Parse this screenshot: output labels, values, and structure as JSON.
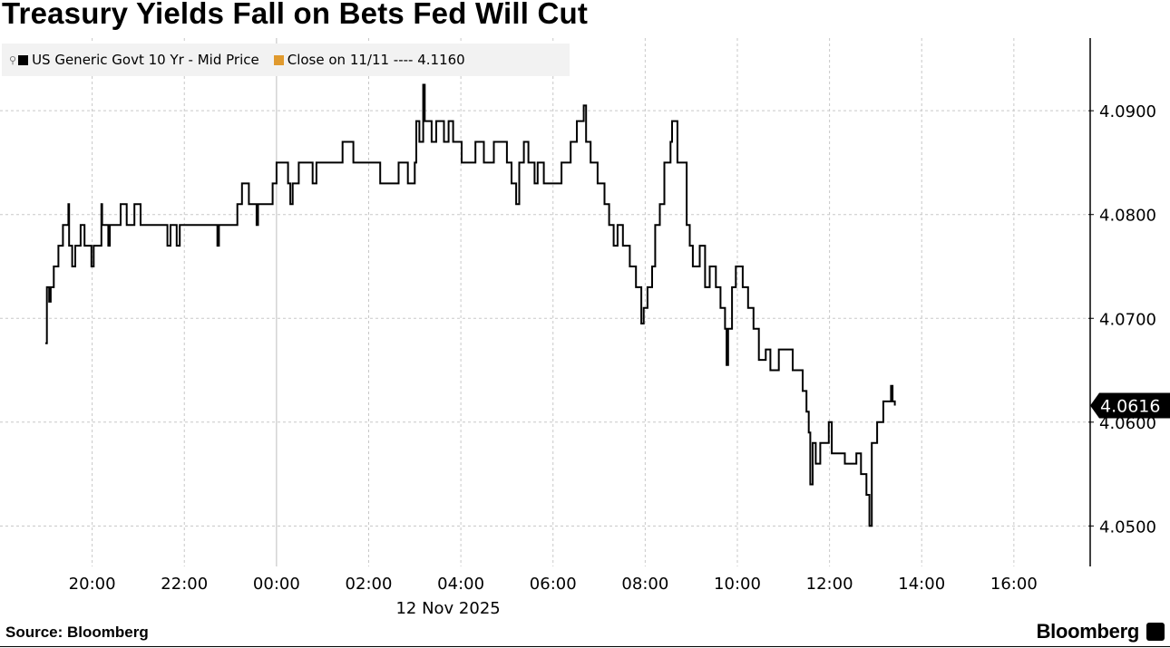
{
  "title": "Treasury Yields Fall on Bets Fed Will Cut",
  "legend": [
    {
      "label": "US Generic Govt 10 Yr - Mid Price",
      "color": "#000000"
    },
    {
      "label": "Close on 11/11 ---- 4.1160",
      "color": "#e09a2e"
    }
  ],
  "source": "Source: Bloomberg",
  "brand": "Bloomberg",
  "chart_data": {
    "type": "line",
    "step": true,
    "title": "Treasury Yields Fall on Bets Fed Will Cut",
    "series": [
      {
        "name": "US Generic Govt 10 Yr - Mid Price",
        "color": "#000000",
        "points": [
          [
            "2025-11-11T18:59",
            4.0676
          ],
          [
            "2025-11-11T19:01",
            4.073
          ],
          [
            "2025-11-11T19:04",
            4.0716
          ],
          [
            "2025-11-11T19:06",
            4.073
          ],
          [
            "2025-11-11T19:10",
            4.075
          ],
          [
            "2025-11-11T19:16",
            4.077
          ],
          [
            "2025-11-11T19:22",
            4.079
          ],
          [
            "2025-11-11T19:29",
            4.081
          ],
          [
            "2025-11-11T19:30",
            4.077
          ],
          [
            "2025-11-11T19:34",
            4.075
          ],
          [
            "2025-11-11T19:38",
            4.077
          ],
          [
            "2025-11-11T19:45",
            4.079
          ],
          [
            "2025-11-11T19:50",
            4.077
          ],
          [
            "2025-11-11T19:59",
            4.075
          ],
          [
            "2025-11-11T20:02",
            4.077
          ],
          [
            "2025-11-11T20:12",
            4.081
          ],
          [
            "2025-11-11T20:13",
            4.079
          ],
          [
            "2025-11-11T20:21",
            4.077
          ],
          [
            "2025-11-11T20:23",
            4.079
          ],
          [
            "2025-11-11T20:37",
            4.081
          ],
          [
            "2025-11-11T20:45",
            4.079
          ],
          [
            "2025-11-11T20:55",
            4.081
          ],
          [
            "2025-11-11T21:03",
            4.079
          ],
          [
            "2025-11-11T21:38",
            4.077
          ],
          [
            "2025-11-11T21:42",
            4.079
          ],
          [
            "2025-11-11T21:50",
            4.077
          ],
          [
            "2025-11-11T21:54",
            4.079
          ],
          [
            "2025-11-11T22:43",
            4.077
          ],
          [
            "2025-11-11T22:45",
            4.079
          ],
          [
            "2025-11-11T23:09",
            4.081
          ],
          [
            "2025-11-11T23:15",
            4.083
          ],
          [
            "2025-11-11T23:24",
            4.081
          ],
          [
            "2025-11-11T23:34",
            4.079
          ],
          [
            "2025-11-11T23:36",
            4.081
          ],
          [
            "2025-11-11T23:55",
            4.083
          ],
          [
            "2025-11-12T00:00",
            4.085
          ],
          [
            "2025-11-12T00:15",
            4.083
          ],
          [
            "2025-11-12T00:18",
            4.081
          ],
          [
            "2025-11-12T00:21",
            4.083
          ],
          [
            "2025-11-12T00:29",
            4.085
          ],
          [
            "2025-11-12T00:47",
            4.083
          ],
          [
            "2025-11-12T00:52",
            4.085
          ],
          [
            "2025-11-12T01:26",
            4.087
          ],
          [
            "2025-11-12T01:40",
            4.085
          ],
          [
            "2025-11-12T02:15",
            4.083
          ],
          [
            "2025-11-12T02:39",
            4.085
          ],
          [
            "2025-11-12T02:51",
            4.083
          ],
          [
            "2025-11-12T03:00",
            4.085
          ],
          [
            "2025-11-12T03:02",
            4.089
          ],
          [
            "2025-11-12T03:06",
            4.087
          ],
          [
            "2025-11-12T03:11",
            4.0925
          ],
          [
            "2025-11-12T03:13",
            4.089
          ],
          [
            "2025-11-12T03:22",
            4.087
          ],
          [
            "2025-11-12T03:28",
            4.089
          ],
          [
            "2025-11-12T03:38",
            4.087
          ],
          [
            "2025-11-12T03:44",
            4.089
          ],
          [
            "2025-11-12T03:50",
            4.087
          ],
          [
            "2025-11-12T04:01",
            4.085
          ],
          [
            "2025-11-12T04:19",
            4.087
          ],
          [
            "2025-11-12T04:30",
            4.085
          ],
          [
            "2025-11-12T04:43",
            4.087
          ],
          [
            "2025-11-12T05:00",
            4.085
          ],
          [
            "2025-11-12T05:06",
            4.083
          ],
          [
            "2025-11-12T05:12",
            4.081
          ],
          [
            "2025-11-12T05:16",
            4.085
          ],
          [
            "2025-11-12T05:22",
            4.087
          ],
          [
            "2025-11-12T05:28",
            4.085
          ],
          [
            "2025-11-12T05:36",
            4.083
          ],
          [
            "2025-11-12T05:40",
            4.085
          ],
          [
            "2025-11-12T05:48",
            4.083
          ],
          [
            "2025-11-12T06:11",
            4.085
          ],
          [
            "2025-11-12T06:23",
            4.087
          ],
          [
            "2025-11-12T06:31",
            4.089
          ],
          [
            "2025-11-12T06:40",
            4.0905
          ],
          [
            "2025-11-12T06:43",
            4.087
          ],
          [
            "2025-11-12T06:49",
            4.085
          ],
          [
            "2025-11-12T06:58",
            4.083
          ],
          [
            "2025-11-12T07:07",
            4.081
          ],
          [
            "2025-11-12T07:13",
            4.079
          ],
          [
            "2025-11-12T07:19",
            4.077
          ],
          [
            "2025-11-12T07:24",
            4.079
          ],
          [
            "2025-11-12T07:31",
            4.077
          ],
          [
            "2025-11-12T07:40",
            4.075
          ],
          [
            "2025-11-12T07:48",
            4.073
          ],
          [
            "2025-11-12T07:55",
            4.0695
          ],
          [
            "2025-11-12T07:58",
            4.071
          ],
          [
            "2025-11-12T08:03",
            4.073
          ],
          [
            "2025-11-12T08:09",
            4.075
          ],
          [
            "2025-11-12T08:13",
            4.079
          ],
          [
            "2025-11-12T08:19",
            4.081
          ],
          [
            "2025-11-12T08:25",
            4.085
          ],
          [
            "2025-11-12T08:33",
            4.087
          ],
          [
            "2025-11-12T08:35",
            4.089
          ],
          [
            "2025-11-12T08:42",
            4.085
          ],
          [
            "2025-11-12T08:54",
            4.079
          ],
          [
            "2025-11-12T08:58",
            4.077
          ],
          [
            "2025-11-12T09:02",
            4.075
          ],
          [
            "2025-11-12T09:11",
            4.077
          ],
          [
            "2025-11-12T09:18",
            4.073
          ],
          [
            "2025-11-12T09:24",
            4.075
          ],
          [
            "2025-11-12T09:32",
            4.073
          ],
          [
            "2025-11-12T09:38",
            4.071
          ],
          [
            "2025-11-12T09:44",
            4.069
          ],
          [
            "2025-11-12T09:46",
            4.0655
          ],
          [
            "2025-11-12T09:48",
            4.069
          ],
          [
            "2025-11-12T09:53",
            4.073
          ],
          [
            "2025-11-12T09:58",
            4.075
          ],
          [
            "2025-11-12T10:07",
            4.073
          ],
          [
            "2025-11-12T10:14",
            4.071
          ],
          [
            "2025-11-12T10:21",
            4.069
          ],
          [
            "2025-11-12T10:28",
            4.066
          ],
          [
            "2025-11-12T10:37",
            4.067
          ],
          [
            "2025-11-12T10:43",
            4.065
          ],
          [
            "2025-11-12T10:54",
            4.067
          ],
          [
            "2025-11-12T11:12",
            4.065
          ],
          [
            "2025-11-12T11:25",
            4.063
          ],
          [
            "2025-11-12T11:30",
            4.061
          ],
          [
            "2025-11-12T11:33",
            4.059
          ],
          [
            "2025-11-12T11:35",
            4.054
          ],
          [
            "2025-11-12T11:38",
            4.058
          ],
          [
            "2025-11-12T11:42",
            4.056
          ],
          [
            "2025-11-12T11:48",
            4.058
          ],
          [
            "2025-11-12T11:59",
            4.06
          ],
          [
            "2025-11-12T12:03",
            4.057
          ],
          [
            "2025-11-12T12:20",
            4.056
          ],
          [
            "2025-11-12T12:35",
            4.057
          ],
          [
            "2025-11-12T12:41",
            4.055
          ],
          [
            "2025-11-12T12:48",
            4.053
          ],
          [
            "2025-11-12T12:52",
            4.05
          ],
          [
            "2025-11-12T12:55",
            4.058
          ],
          [
            "2025-11-12T13:02",
            4.06
          ],
          [
            "2025-11-12T13:10",
            4.062
          ],
          [
            "2025-11-12T13:20",
            4.0635
          ],
          [
            "2025-11-12T13:22",
            4.062
          ],
          [
            "2025-11-12T13:25",
            4.0616
          ]
        ]
      }
    ],
    "last_value_label": "4.0616",
    "reference_line": {
      "label": "Close on 11/11",
      "value": 4.116,
      "color": "#e09a2e"
    },
    "x_ticks": [
      "20:00",
      "22:00",
      "00:00",
      "02:00",
      "04:00",
      "06:00",
      "08:00",
      "10:00",
      "12:00",
      "14:00",
      "16:00"
    ],
    "x_tick_times": [
      "2025-11-11T20:00",
      "2025-11-11T22:00",
      "2025-11-12T00:00",
      "2025-11-12T02:00",
      "2025-11-12T04:00",
      "2025-11-12T06:00",
      "2025-11-12T08:00",
      "2025-11-12T10:00",
      "2025-11-12T12:00",
      "2025-11-12T14:00",
      "2025-11-12T16:00"
    ],
    "x_date_label": "12 Nov 2025",
    "xlim": [
      "2025-11-11T18:00",
      "2025-11-12T17:37"
    ],
    "y_ticks": [
      "4.0900",
      "4.0800",
      "4.0700",
      "4.0600",
      "4.0500"
    ],
    "y_tick_values": [
      4.09,
      4.08,
      4.07,
      4.06,
      4.05
    ],
    "ylim": [
      4.0461,
      4.097
    ],
    "y_axis_side": "right",
    "grid": true,
    "legend_position": "top-left"
  }
}
